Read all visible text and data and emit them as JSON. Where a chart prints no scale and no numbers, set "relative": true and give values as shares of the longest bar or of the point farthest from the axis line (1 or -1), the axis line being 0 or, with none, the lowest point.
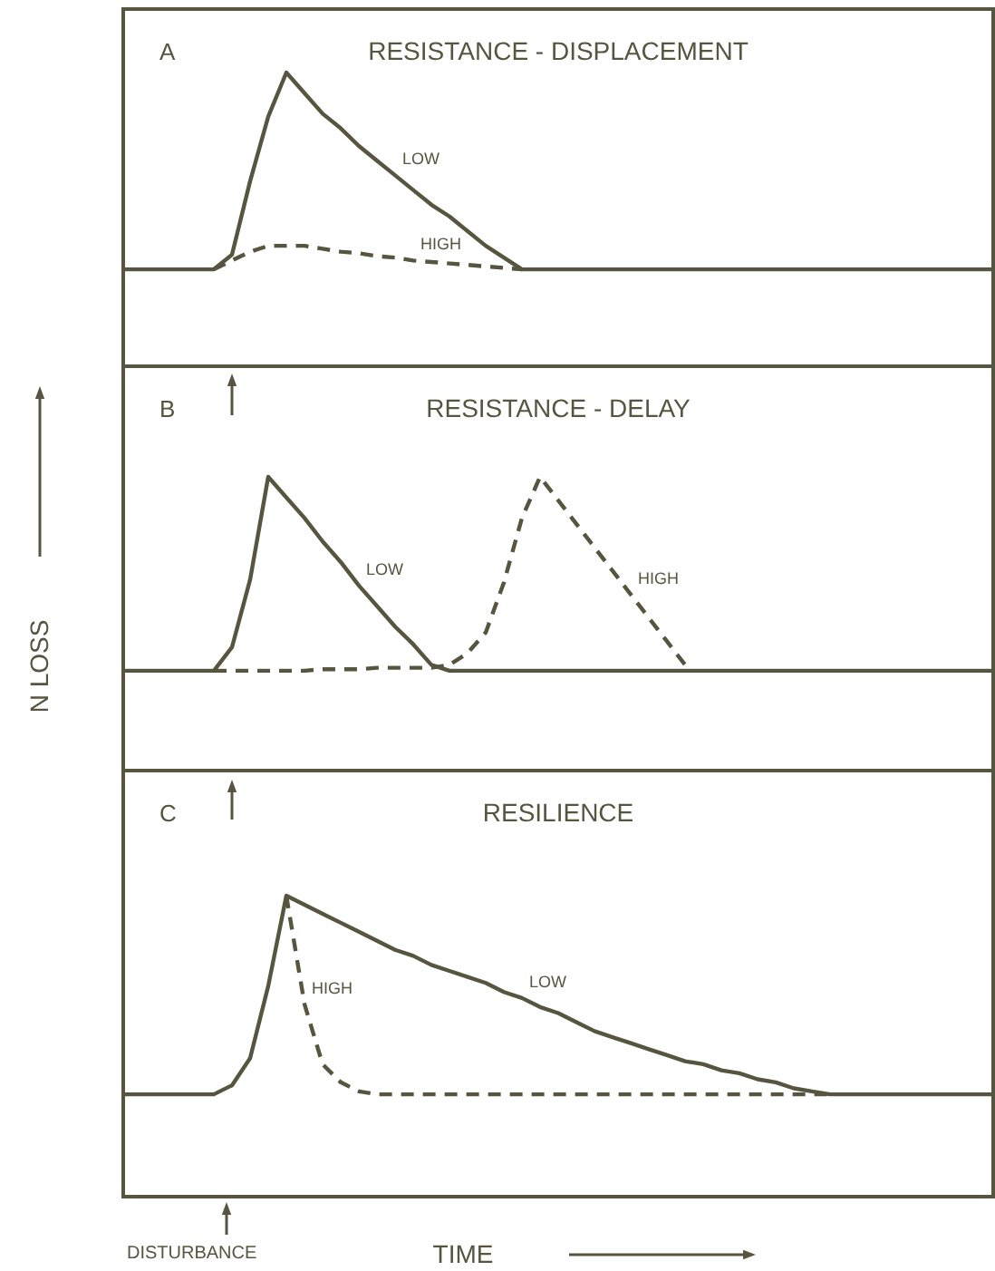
{
  "chart_data": [
    {
      "type": "line",
      "relative": true,
      "title": "RESISTANCE - DISPLACEMENT",
      "annotations": [
        "A"
      ],
      "categories": [
        null,
        null,
        null,
        null,
        null,
        null,
        null,
        null,
        null,
        null,
        null,
        null,
        null,
        null,
        null,
        null,
        null,
        null,
        null,
        null,
        null,
        null,
        null,
        null,
        null,
        null,
        null,
        null,
        null,
        null,
        null,
        null,
        null,
        null,
        null,
        null,
        null,
        null,
        null,
        null,
        null,
        null,
        null,
        null,
        null,
        null,
        null,
        null,
        null
      ],
      "series": [
        {
          "name": "LOW",
          "color": "#57553f",
          "line_style": "solid",
          "values": [
            0.33,
            0.33,
            0.33,
            0.33,
            0.33,
            0.33,
            0.38,
            0.63,
            0.85,
            1,
            0.93,
            0.86,
            0.81,
            0.75,
            0.7,
            0.65,
            0.6,
            0.55,
            0.51,
            0.46,
            0.41,
            0.37,
            0.33,
            0.33,
            0.33,
            0.33,
            0.33,
            0.33,
            0.33,
            0.33,
            0.33,
            0.33,
            0.33,
            0.33,
            0.33,
            0.33,
            0.33,
            0.33,
            0.33,
            0.33,
            0.33,
            0.33,
            0.33,
            0.33,
            0.33,
            0.33,
            0.33,
            0.33,
            0.33
          ]
        },
        {
          "name": "HIGH",
          "color": "#57553f",
          "line_style": "dashed",
          "values": [
            null,
            null,
            null,
            null,
            null,
            0.33,
            0.36,
            0.39,
            0.41,
            0.41,
            0.41,
            0.4,
            0.39,
            0.385,
            0.375,
            0.37,
            0.36,
            0.355,
            0.35,
            0.345,
            0.34,
            0.335,
            0.33,
            null,
            null,
            null,
            null,
            null,
            null,
            null,
            null,
            null,
            null,
            null,
            null,
            null,
            null,
            null,
            null,
            null,
            null,
            null,
            null,
            null,
            null,
            null,
            null,
            null,
            null
          ]
        }
      ]
    },
    {
      "type": "line",
      "relative": true,
      "title": "RESISTANCE -  DELAY",
      "ylabel": "N LOSS",
      "annotations": [
        "B"
      ],
      "categories": [
        null,
        null,
        null,
        null,
        null,
        null,
        null,
        null,
        null,
        null,
        null,
        null,
        null,
        null,
        null,
        null,
        null,
        null,
        null,
        null,
        null,
        null,
        null,
        null,
        null,
        null,
        null,
        null,
        null,
        null,
        null,
        null,
        null,
        null,
        null,
        null,
        null,
        null,
        null,
        null,
        null,
        null,
        null,
        null,
        null,
        null,
        null,
        null,
        null
      ],
      "series": [
        {
          "name": "LOW",
          "color": "#57553f",
          "line_style": "solid",
          "values": [
            0.34,
            0.34,
            0.34,
            0.34,
            0.34,
            0.34,
            0.42,
            0.65,
            1,
            0.93,
            0.86,
            0.78,
            0.71,
            0.63,
            0.56,
            0.49,
            0.43,
            0.36,
            0.34,
            0.34,
            0.34,
            0.34,
            0.34,
            0.34,
            0.34,
            0.34,
            0.34,
            0.34,
            0.34,
            0.34,
            0.34,
            0.34,
            0.34,
            0.34,
            0.34,
            0.34,
            0.34,
            0.34,
            0.34,
            0.34,
            0.34,
            0.34,
            0.34,
            0.34,
            0.34,
            0.34,
            0.34,
            0.34,
            0.34
          ]
        },
        {
          "name": "HIGH",
          "color": "#57553f",
          "line_style": "dashed",
          "values": [
            null,
            null,
            null,
            null,
            null,
            0.34,
            0.34,
            0.34,
            0.34,
            0.34,
            0.34,
            0.345,
            0.345,
            0.345,
            0.35,
            0.35,
            0.35,
            0.35,
            0.36,
            0.4,
            0.47,
            0.64,
            0.86,
            1,
            0.92,
            0.84,
            0.76,
            0.68,
            0.6,
            0.52,
            0.44,
            0.36,
            null,
            null,
            null,
            null,
            null,
            null,
            null,
            null,
            null,
            null,
            null,
            null,
            null,
            null,
            null,
            null,
            null
          ]
        }
      ]
    },
    {
      "type": "line",
      "relative": true,
      "title": "RESILIENCE",
      "xlabel": "TIME",
      "annotations": [
        "C",
        "DISTURBANCE"
      ],
      "categories": [
        null,
        null,
        null,
        null,
        null,
        null,
        null,
        null,
        null,
        null,
        null,
        null,
        null,
        null,
        null,
        null,
        null,
        null,
        null,
        null,
        null,
        null,
        null,
        null,
        null,
        null,
        null,
        null,
        null,
        null,
        null,
        null,
        null,
        null,
        null,
        null,
        null,
        null,
        null,
        null,
        null,
        null,
        null,
        null,
        null,
        null,
        null,
        null,
        null
      ],
      "series": [
        {
          "name": "LOW",
          "color": "#57553f",
          "line_style": "solid",
          "values": [
            0.34,
            0.34,
            0.34,
            0.34,
            0.34,
            0.34,
            0.37,
            0.46,
            0.7,
            1,
            0.97,
            0.94,
            0.91,
            0.88,
            0.85,
            0.82,
            0.8,
            0.77,
            0.75,
            0.73,
            0.71,
            0.68,
            0.66,
            0.63,
            0.61,
            0.58,
            0.55,
            0.53,
            0.51,
            0.49,
            0.47,
            0.45,
            0.44,
            0.42,
            0.41,
            0.39,
            0.38,
            0.36,
            0.35,
            0.34,
            0.34,
            0.34,
            0.34,
            0.34,
            0.34,
            0.34,
            0.34,
            0.34,
            0.34
          ]
        },
        {
          "name": "HIGH",
          "color": "#57553f",
          "line_style": "dashed",
          "values": [
            null,
            null,
            null,
            null,
            null,
            null,
            null,
            null,
            null,
            1,
            0.64,
            0.44,
            0.38,
            0.35,
            0.34,
            0.34,
            0.34,
            0.34,
            0.34,
            0.34,
            0.34,
            0.34,
            0.34,
            0.34,
            0.34,
            0.34,
            0.34,
            0.34,
            0.34,
            0.34,
            0.34,
            0.34,
            0.34,
            0.34,
            0.34,
            0.34,
            0.34,
            0.34,
            0.34,
            0.34,
            null,
            null,
            null,
            null,
            null,
            null,
            null,
            null,
            null
          ]
        }
      ]
    }
  ]
}
